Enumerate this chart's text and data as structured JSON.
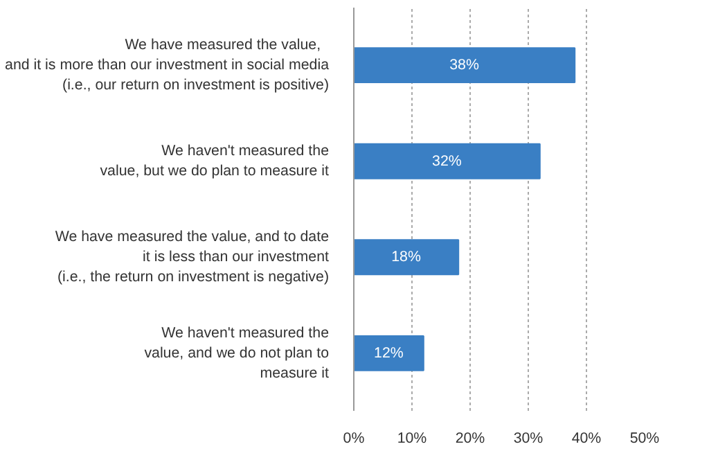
{
  "chart_data": {
    "type": "bar",
    "orientation": "horizontal",
    "categories": [
      "We have measured  the  value,\nand it is more than our investment in social media\n(i.e., our return on investment is positive)",
      "We haven't measured the\nvalue, but we do plan to measure it",
      "We have measured the value, and to date\nit is less than our investment\n(i.e., the return on investment is negative)",
      "We haven't measured the\nvalue, and we do not plan to\nmeasure it"
    ],
    "values": [
      38,
      32,
      18,
      12
    ],
    "value_labels": [
      "38%",
      "32%",
      "18%",
      "12%"
    ],
    "color": "#3a7fc4",
    "xlim": [
      0,
      50
    ],
    "xticks": [
      {
        "value": 0,
        "label": "0%"
      },
      {
        "value": 10,
        "label": "10%"
      },
      {
        "value": 20,
        "label": "20%"
      },
      {
        "value": 30,
        "label": "30%"
      },
      {
        "value": 40,
        "label": "40%"
      },
      {
        "value": 50,
        "label": "50%"
      }
    ],
    "grid": "x"
  }
}
